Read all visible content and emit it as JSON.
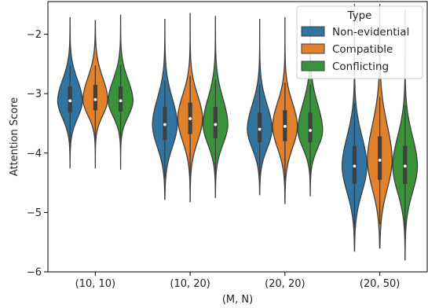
{
  "chart_data": {
    "type": "violin",
    "xlabel": "(M, N)",
    "ylabel": "Attention Score",
    "categories": [
      "(10, 10)",
      "(10, 20)",
      "(20, 20)",
      "(20, 50)"
    ],
    "ylim": [
      -6,
      -1.45
    ],
    "yticks": [
      -6,
      -5,
      -4,
      -3,
      -2
    ],
    "ytick_labels": [
      "−6",
      "−5",
      "−4",
      "−3",
      "−2"
    ],
    "legend": {
      "title": "Type",
      "position": "top-right"
    },
    "series": [
      {
        "name": "Non-evidential",
        "color": "#3274a1",
        "stats": [
          {
            "min": -4.25,
            "q1": -3.32,
            "median": -3.12,
            "q3": -2.88,
            "max": -1.72
          },
          {
            "min": -4.78,
            "q1": -3.78,
            "median": -3.52,
            "q3": -3.22,
            "max": -1.75
          },
          {
            "min": -4.7,
            "q1": -3.82,
            "median": -3.6,
            "q3": -3.32,
            "max": -1.75
          },
          {
            "min": -5.65,
            "q1": -4.52,
            "median": -4.22,
            "q3": -3.88,
            "max": -1.5
          }
        ]
      },
      {
        "name": "Compatible",
        "color": "#e1812c",
        "stats": [
          {
            "min": -4.25,
            "q1": -3.28,
            "median": -3.1,
            "q3": -2.85,
            "max": -1.77
          },
          {
            "min": -4.82,
            "q1": -3.68,
            "median": -3.42,
            "q3": -3.15,
            "max": -1.65
          },
          {
            "min": -4.85,
            "q1": -3.8,
            "median": -3.55,
            "q3": -3.28,
            "max": -1.72
          },
          {
            "min": -5.6,
            "q1": -4.45,
            "median": -4.12,
            "q3": -3.72,
            "max": -1.5
          }
        ]
      },
      {
        "name": "Conflicting",
        "color": "#3a923a",
        "stats": [
          {
            "min": -4.27,
            "q1": -3.3,
            "median": -3.12,
            "q3": -2.88,
            "max": -1.68
          },
          {
            "min": -4.75,
            "q1": -3.75,
            "median": -3.52,
            "q3": -3.22,
            "max": -1.7
          },
          {
            "min": -4.72,
            "q1": -3.82,
            "median": -3.62,
            "q3": -3.32,
            "max": -1.75
          },
          {
            "min": -5.8,
            "q1": -4.52,
            "median": -4.22,
            "q3": -3.88,
            "max": -1.58
          }
        ]
      }
    ]
  }
}
